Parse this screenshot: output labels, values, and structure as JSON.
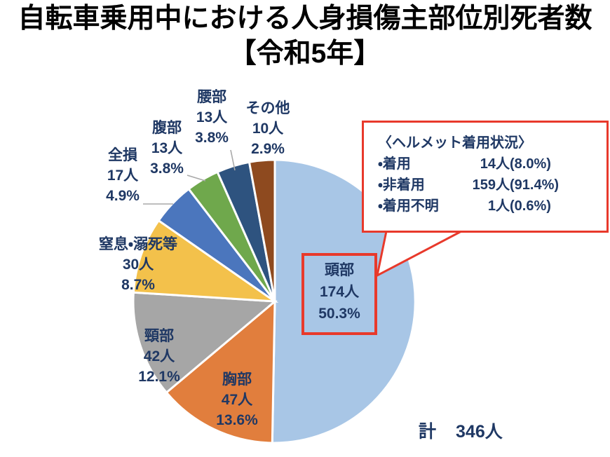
{
  "title": {
    "line1": "自転車乗用中における人身損傷主部位別死者数",
    "line2": "【令和5年】"
  },
  "chart_data": {
    "type": "pie",
    "title": "自転車乗用中における人身損傷主部位別死者数【令和5年】",
    "unit": "人",
    "total_count": 346,
    "total_label": "計 346人",
    "start_angle_deg": 0,
    "direction": "clockwise",
    "legend": "none",
    "labels_on_chart": true,
    "slices": [
      {
        "label": "頭部",
        "value": 174,
        "count_label": "174人",
        "pct": 50.3,
        "pct_label": "50.3%",
        "color": "#A8C6E6",
        "highlighted": true
      },
      {
        "label": "胸部",
        "value": 47,
        "count_label": "47人",
        "pct": 13.6,
        "pct_label": "13.6%",
        "color": "#E17E3D",
        "highlighted": false
      },
      {
        "label": "頸部",
        "value": 42,
        "count_label": "42人",
        "pct": 12.1,
        "pct_label": "12.1%",
        "color": "#A6A6A6",
        "highlighted": false
      },
      {
        "label": "窒息・溺死等",
        "value": 30,
        "count_label": "30人",
        "pct": 8.7,
        "pct_label": "8.7%",
        "color": "#F3C14B",
        "highlighted": false
      },
      {
        "label": "全損",
        "value": 17,
        "count_label": "17人",
        "pct": 4.9,
        "pct_label": "4.9%",
        "color": "#4B76BD",
        "highlighted": false
      },
      {
        "label": "腹部",
        "value": 13,
        "count_label": "13人",
        "pct": 3.8,
        "pct_label": "3.8%",
        "color": "#6FA84C",
        "highlighted": false
      },
      {
        "label": "腰部",
        "value": 13,
        "count_label": "13人",
        "pct": 3.8,
        "pct_label": "3.8%",
        "color": "#2E537F",
        "highlighted": false
      },
      {
        "label": "その他",
        "value": 10,
        "count_label": "10人",
        "pct": 2.9,
        "pct_label": "2.9%",
        "color": "#8E4A1F",
        "highlighted": false
      }
    ]
  },
  "callout": {
    "title": "〈ヘルメット着用状況〉",
    "rows": [
      {
        "label": "・着用",
        "count": "14人",
        "pct": "(8.0%)"
      },
      {
        "label": "・非着用",
        "count": "159人",
        "pct": "(91.4%)"
      },
      {
        "label": "・着用不明",
        "count": "1人",
        "pct": "(0.6%)"
      }
    ]
  },
  "total": {
    "prefix": "計",
    "value": "346人"
  },
  "colors": {
    "highlight_red": "#E8392B",
    "label_text": "#1F3864",
    "leader_line": "#A9A9A9",
    "slice_border": "#FFFFFF"
  }
}
